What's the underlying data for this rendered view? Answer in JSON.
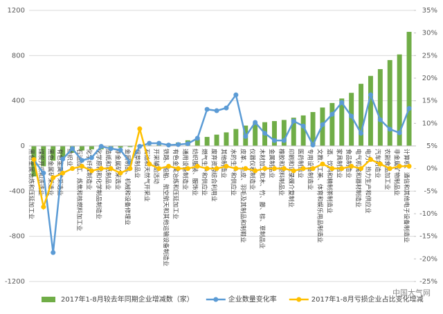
{
  "chart_data": {
    "type": "bar",
    "categories": [
      "黑色金属冶炼和压延加工业",
      "煤炭开采和洗选业",
      "黑色金属矿采选业",
      "有色金属矿采选业",
      "纺织业",
      "石油加工、炼焦和核燃料加工业",
      "化学纤维制造业",
      "化学原料和化学制品制造业",
      "造纸和纸制品业",
      "非金属矿采选业",
      "金属制品、机械和设备修理业",
      "烟草制品业",
      "石油和天然气开采业",
      "开采辅助活动",
      "铁路、船舶、航空航天和其他运输设备制造业",
      "有色金属冶炼和压延加工业",
      "通用设备制造业",
      "纺织服装、服饰业",
      "燃气生产和供应业",
      "废弃资源综合利用业",
      "其他制造业",
      "水的生产和供应业",
      "皮革、毛皮、羽毛及其制品和制鞋业",
      "仪器仪表制造业",
      "木材加工和木、竹、藤、棕、草制品业",
      "金属制品业",
      "橡胶和塑料制品业",
      "印刷和记录媒介复制业",
      "医药制造业",
      "专用设备制造业",
      "文教、工美、体育和娱乐用品制造业",
      "酒、饮料和精制茶制造业",
      "家具制造业",
      "食品制造业",
      "电气机械和器材制造业",
      "电力、热力生产和供应业",
      "汽车制造业",
      "农副食品加工业",
      "非金属矿物制品业",
      "计算机、通信和其他电子设备制造业"
    ],
    "series": [
      {
        "name": "2017年1-8月较去年同期企业增减数（家）",
        "color": "#70ad47",
        "type": "bar",
        "values": [
          -270,
          -180,
          -130,
          -100,
          -60,
          -40,
          -30,
          -30,
          -20,
          -15,
          -10,
          -5,
          5,
          10,
          20,
          30,
          50,
          60,
          80,
          100,
          120,
          150,
          180,
          200,
          210,
          220,
          230,
          250,
          270,
          300,
          340,
          380,
          420,
          470,
          550,
          620,
          680,
          760,
          810,
          1010
        ]
      },
      {
        "name": "企业数量变化率",
        "color": "#5b9bd5",
        "type": "line",
        "axis": "y2",
        "values": [
          1.9,
          -1,
          -18.6,
          2.1,
          4.4,
          1.8,
          2.4,
          4.9,
          4.4,
          4.1,
          1.3,
          4.9,
          5.6,
          5.6,
          5.2,
          5.3,
          5.5,
          6.7,
          13.1,
          12.8,
          13.4,
          16.3,
          7.1,
          10.2,
          7.8,
          6.2,
          6.2,
          10.5,
          9.4,
          5.2,
          9.7,
          12,
          14.6,
          11.6,
          7.8,
          16.3,
          10.8,
          8.7,
          7.9,
          13.3
        ]
      },
      {
        "name": "2017年1-8月亏损企业占比变化增减",
        "color": "#ffc000",
        "type": "line",
        "axis": "y2",
        "values": [
          2,
          -8.5,
          -2,
          -1,
          0,
          0.5,
          -0.5,
          0,
          0,
          -1,
          0,
          8.8,
          1,
          0,
          0.5,
          0,
          0,
          0.5,
          0,
          0,
          0.5,
          0,
          0,
          -0.5,
          0,
          0,
          0,
          -0.5,
          0,
          0,
          1,
          0,
          0,
          0.5,
          0,
          2,
          1,
          0,
          0.5,
          0.5
        ]
      }
    ],
    "ylim": [
      -1200,
      1200
    ],
    "yticks": [
      -1200,
      -800,
      -400,
      0,
      400,
      800,
      1200
    ],
    "y2lim": [
      -25,
      35
    ],
    "y2ticks": [
      {
        "value": -25,
        "label": "-25%"
      },
      {
        "value": -20,
        "label": "-20%"
      },
      {
        "value": -15,
        "label": "-15%"
      },
      {
        "value": -10,
        "label": "-10%"
      },
      {
        "value": -5,
        "label": "-5%"
      },
      {
        "value": 0,
        "label": "0%"
      },
      {
        "value": 5,
        "label": "5%"
      },
      {
        "value": 10,
        "label": "10%"
      },
      {
        "value": 15,
        "label": "15%"
      },
      {
        "value": 20,
        "label": "20%"
      },
      {
        "value": 25,
        "label": "25%"
      },
      {
        "value": 30,
        "label": "30%"
      },
      {
        "value": 35,
        "label": "35%"
      }
    ],
    "watermark": "中国大气网"
  }
}
